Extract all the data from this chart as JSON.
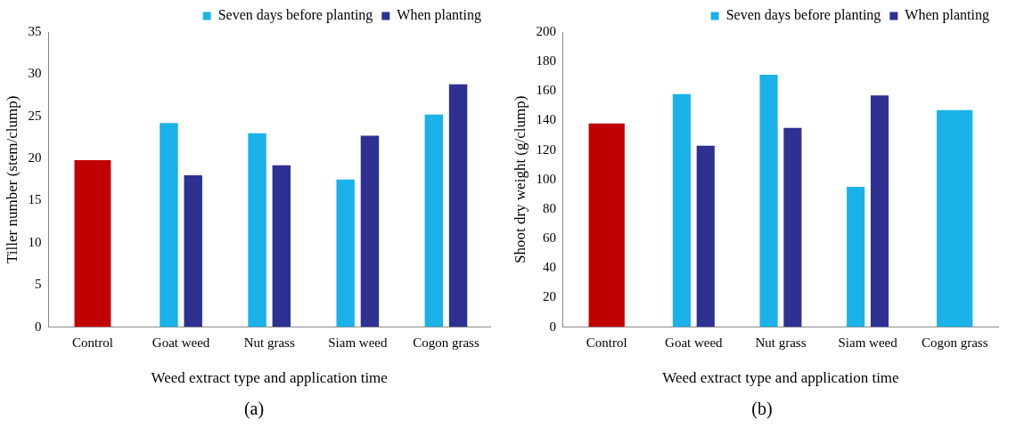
{
  "chart_data": [
    {
      "type": "bar",
      "xlabel": "Weed extract type and application time",
      "ylabel": "Tiller number (stem/clump)",
      "categories": [
        "Control",
        "Goat weed",
        "Nut grass",
        "Siam weed",
        "Cogon grass"
      ],
      "series": [
        {
          "color": "#c00000",
          "values": [
            19.8,
            null,
            null,
            null,
            null
          ]
        },
        {
          "name": "Seven days before planting",
          "color": "#1ab2e8",
          "values": [
            null,
            24.2,
            23,
            17.5,
            25.2
          ]
        },
        {
          "name": "When planting",
          "color": "#2e3192",
          "values": [
            null,
            18,
            19.2,
            22.7,
            28.8
          ]
        }
      ],
      "ylim": [
        0,
        35
      ],
      "yticks": [
        0,
        5,
        10,
        15,
        20,
        25,
        30,
        35
      ],
      "grid": false,
      "legend": "top right",
      "annotations": [
        "(a)"
      ]
    },
    {
      "type": "bar",
      "xlabel": "Weed extract type and application time",
      "ylabel": "Shoot dry weight (g/clump)",
      "categories": [
        "Control",
        "Goat weed",
        "Nut grass",
        "Siam weed",
        "Cogon grass"
      ],
      "series": [
        {
          "color": "#c00000",
          "values": [
            138,
            null,
            null,
            null,
            null
          ]
        },
        {
          "name": "Seven days before planting",
          "color": "#1ab2e8",
          "values": [
            null,
            158,
            171,
            95,
            147
          ]
        },
        {
          "name": "When planting",
          "color": "#2e3192",
          "values": [
            null,
            123,
            135,
            157,
            null
          ]
        }
      ],
      "ylim": [
        0,
        200
      ],
      "yticks": [
        0,
        20,
        40,
        60,
        80,
        100,
        120,
        140,
        160,
        180,
        200
      ],
      "grid": false,
      "legend": "top right",
      "annotations": [
        "(b)"
      ]
    }
  ]
}
